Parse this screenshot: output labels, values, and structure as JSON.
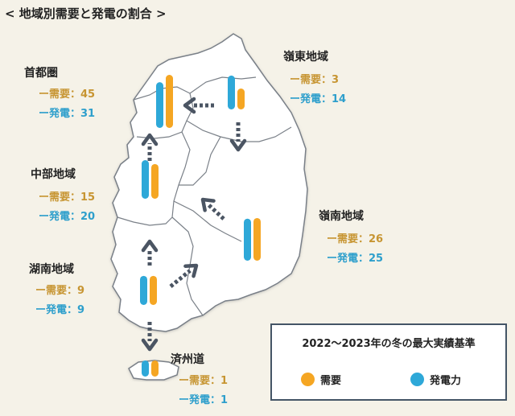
{
  "title": "< 地域別需要と発電の割合 >",
  "regions": [
    {
      "key": "capital",
      "name": "首都圏",
      "demand_label": "ー需要：45",
      "gen_label": "ー発電：31"
    },
    {
      "key": "gangwon",
      "name": "嶺東地域",
      "demand_label": "ー需要：3",
      "gen_label": "ー発電：14"
    },
    {
      "key": "central",
      "name": "中部地域",
      "demand_label": "ー需要：15",
      "gen_label": "ー発電：20"
    },
    {
      "key": "yeongnam",
      "name": "嶺南地域",
      "demand_label": "ー需要：26",
      "gen_label": "ー発電：25"
    },
    {
      "key": "honam",
      "name": "湖南地域",
      "demand_label": "ー需要：9",
      "gen_label": "ー発電：9"
    },
    {
      "key": "jeju",
      "name": "済州道",
      "demand_label": "ー需要：1",
      "gen_label": "ー発電：1"
    }
  ],
  "legend": {
    "title": "2022～2023年の冬の最大実績基準",
    "demand": "需要",
    "generation": "発電力"
  },
  "colors": {
    "demand": "#f5a623",
    "generation": "#2ea8d8",
    "demand_text": "#c79532",
    "generation_text": "#2e9fcc",
    "map_fill": "#ffffff",
    "map_stroke": "#7a8088",
    "arrow": "#4b5563"
  },
  "chart_data": {
    "type": "bar",
    "categories": [
      "首都圏",
      "嶺東地域",
      "中部地域",
      "嶺南地域",
      "湖南地域",
      "済州道"
    ],
    "series": [
      {
        "name": "需要",
        "values": [
          45,
          3,
          15,
          26,
          9,
          1
        ]
      },
      {
        "name": "発電力",
        "values": [
          31,
          14,
          20,
          25,
          9,
          1
        ]
      }
    ],
    "title": "< 地域別需要と発電の割合 >",
    "legend_position": "bottom-right",
    "flows": [
      {
        "from": "嶺東地域",
        "to": "首都圏"
      },
      {
        "from": "嶺東地域",
        "to": "嶺南地域"
      },
      {
        "from": "中部地域",
        "to": "首都圏"
      },
      {
        "from": "嶺南地域",
        "to": "中部地域"
      },
      {
        "from": "湖南地域",
        "to": "中部地域"
      },
      {
        "from": "湖南地域",
        "to": "嶺南地域"
      },
      {
        "from": "湖南地域",
        "to": "済州道"
      }
    ]
  }
}
